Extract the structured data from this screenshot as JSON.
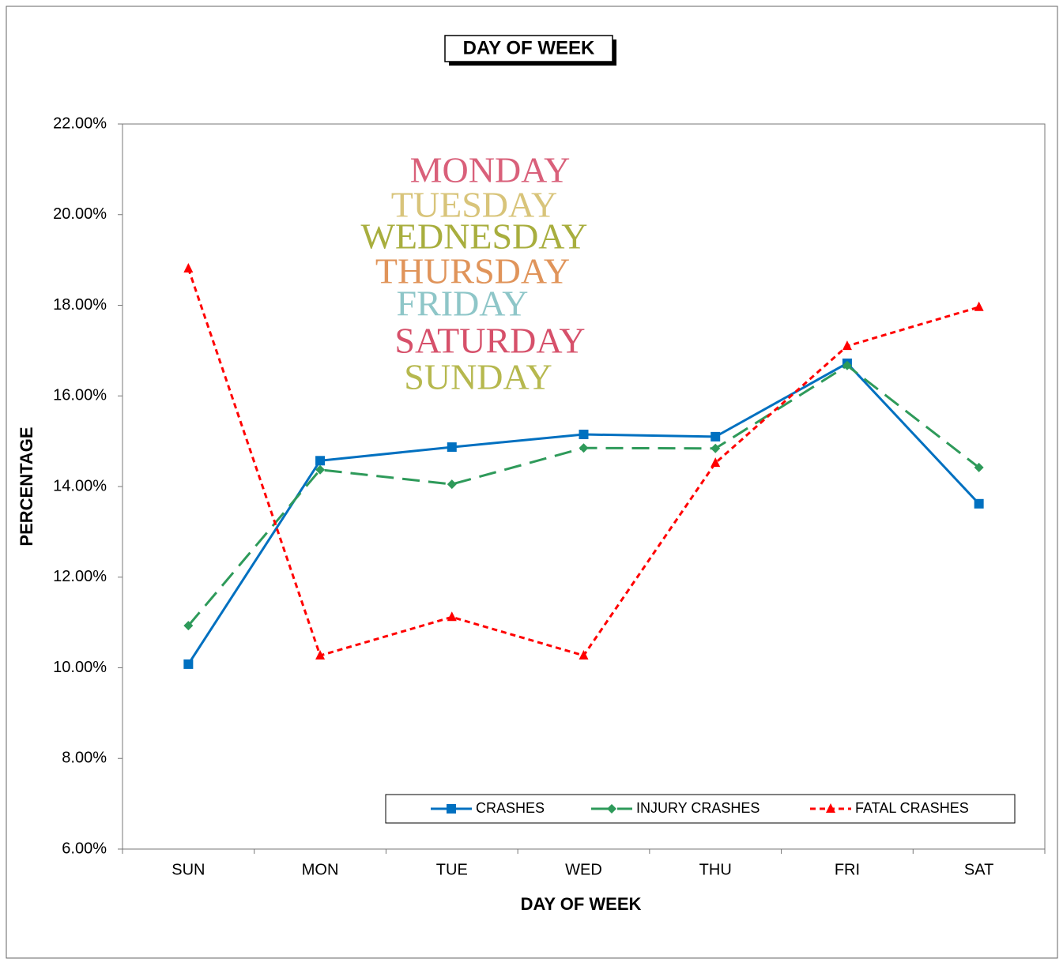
{
  "chart_data": {
    "type": "line",
    "title": "DAY OF WEEK",
    "xlabel": "DAY OF WEEK",
    "ylabel": "PERCENTAGE",
    "categories": [
      "SUN",
      "MON",
      "TUE",
      "WED",
      "THU",
      "FRI",
      "SAT"
    ],
    "series": [
      {
        "name": "CRASHES",
        "color": "#0070c0",
        "marker": "square",
        "dash": "solid",
        "values": [
          10.08,
          14.57,
          14.87,
          15.15,
          15.1,
          16.72,
          13.62
        ]
      },
      {
        "name": "INJURY CRASHES",
        "color": "#2e9a5a",
        "marker": "diamond",
        "dash": "long",
        "values": [
          10.93,
          14.37,
          14.05,
          14.85,
          14.84,
          16.67,
          14.42
        ]
      },
      {
        "name": "FATAL CRASHES",
        "color": "#ff0000",
        "marker": "triangle",
        "dash": "short",
        "values": [
          18.81,
          10.27,
          11.12,
          10.27,
          14.52,
          17.1,
          17.96
        ]
      }
    ],
    "ylim": [
      6,
      22
    ],
    "yticks": [
      {
        "value": 6,
        "label": "6.00%"
      },
      {
        "value": 8,
        "label": "8.00%"
      },
      {
        "value": 10,
        "label": "10.00%"
      },
      {
        "value": 12,
        "label": "12.00%"
      },
      {
        "value": 14,
        "label": "14.00%"
      },
      {
        "value": 16,
        "label": "16.00%"
      },
      {
        "value": 18,
        "label": "18.00%"
      },
      {
        "value": 20,
        "label": "20.00%"
      },
      {
        "value": 22,
        "label": "22.00%"
      }
    ],
    "grid": false,
    "legend": "bottom-right",
    "image_text": [
      "MONDAY",
      "TUESDAY",
      "WEDNESDAY",
      "THURSDAY",
      "FRIDAY",
      "SATURDAY",
      "SUNDAY"
    ]
  }
}
